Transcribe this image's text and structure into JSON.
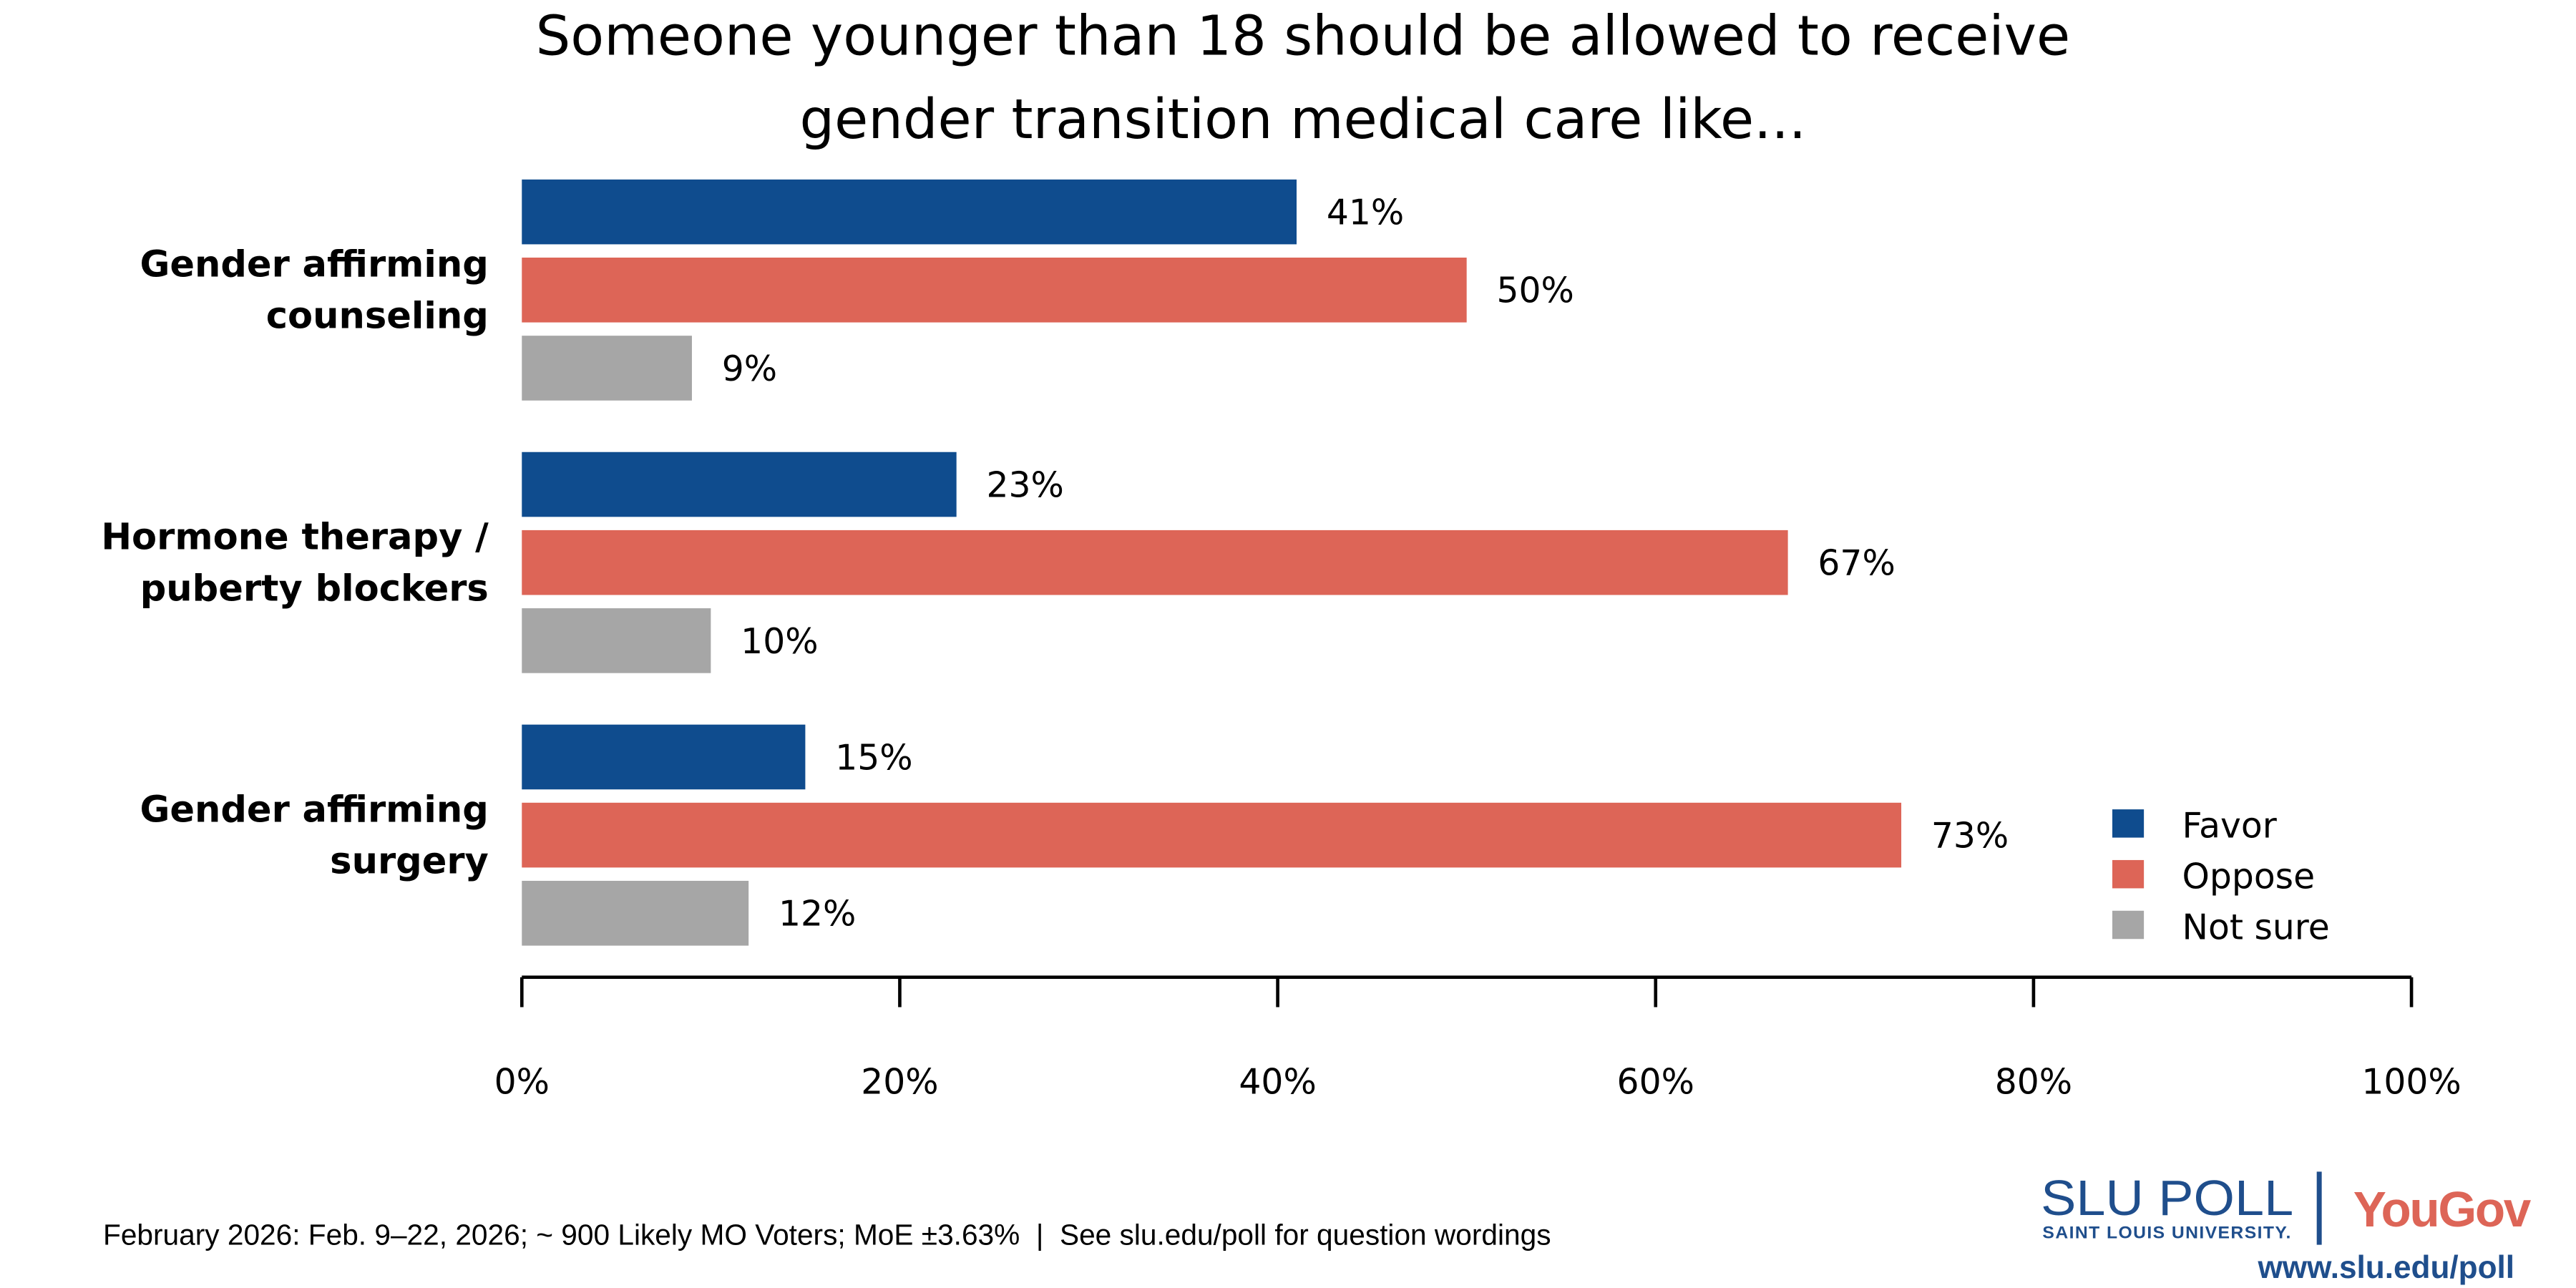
{
  "chart_data": {
    "type": "bar",
    "orientation": "horizontal",
    "title": [
      "Someone younger than 18 should be allowed to receive",
      "gender transition medical care like..."
    ],
    "categories": [
      [
        "Gender affirming",
        "counseling"
      ],
      [
        "Hormone therapy /",
        "puberty blockers"
      ],
      [
        "Gender affirming",
        "surgery"
      ]
    ],
    "series": [
      {
        "name": "Favor",
        "color": "#0F4C8E",
        "values": [
          41,
          23,
          15
        ]
      },
      {
        "name": "Oppose",
        "color": "#DD6557",
        "values": [
          50,
          67,
          73
        ]
      },
      {
        "name": "Not sure",
        "color": "#A6A6A6",
        "values": [
          9,
          10,
          12
        ]
      }
    ],
    "value_suffix": "%",
    "xlim": [
      0,
      100
    ],
    "xticks": [
      "0%",
      "20%",
      "40%",
      "60%",
      "80%",
      "100%"
    ],
    "xlabel": "",
    "ylabel": "",
    "grid": false,
    "legend_position": "bottom-right"
  },
  "footer": {
    "note": "February 2026: Feb. 9–22, 2026; ~ 900 Likely MO Voters; MoE ±3.63%  |  See slu.edu/poll for question wordings"
  },
  "logo": {
    "slu": "SLU POLL",
    "slu_sub": "SAINT LOUIS UNIVERSITY.",
    "yougov": "YouGov",
    "url": "www.slu.edu/poll"
  }
}
